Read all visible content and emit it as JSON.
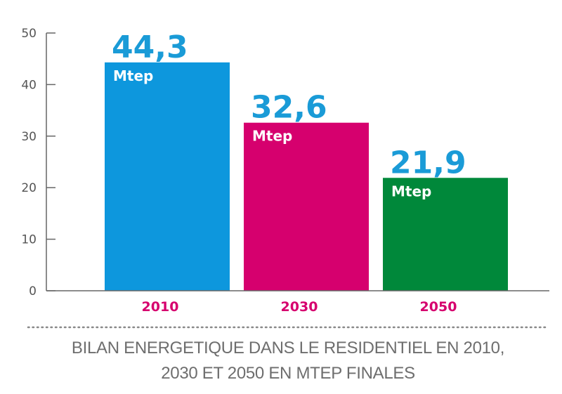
{
  "chart_data": {
    "type": "bar",
    "categories": [
      "2010",
      "2030",
      "2050"
    ],
    "values": [
      44.3,
      32.6,
      21.9
    ],
    "value_labels": [
      "44,3",
      "32,6",
      "21,9"
    ],
    "unit": "Mtep",
    "colors": [
      "#0d97dd",
      "#d6006e",
      "#00883a"
    ],
    "value_label_color": "#1a9bd7",
    "category_label_color": "#d6006e",
    "yticks": [
      0,
      10,
      20,
      30,
      40,
      50
    ],
    "ylim": [
      0,
      50
    ],
    "grid": false,
    "title": "",
    "xlabel": "",
    "ylabel": "",
    "caption_line1": "BILAN ENERGETIQUE DANS LE RESIDENTIEL EN 2010,",
    "caption_line2": "2030 ET 2050 EN MTEP FINALES"
  }
}
